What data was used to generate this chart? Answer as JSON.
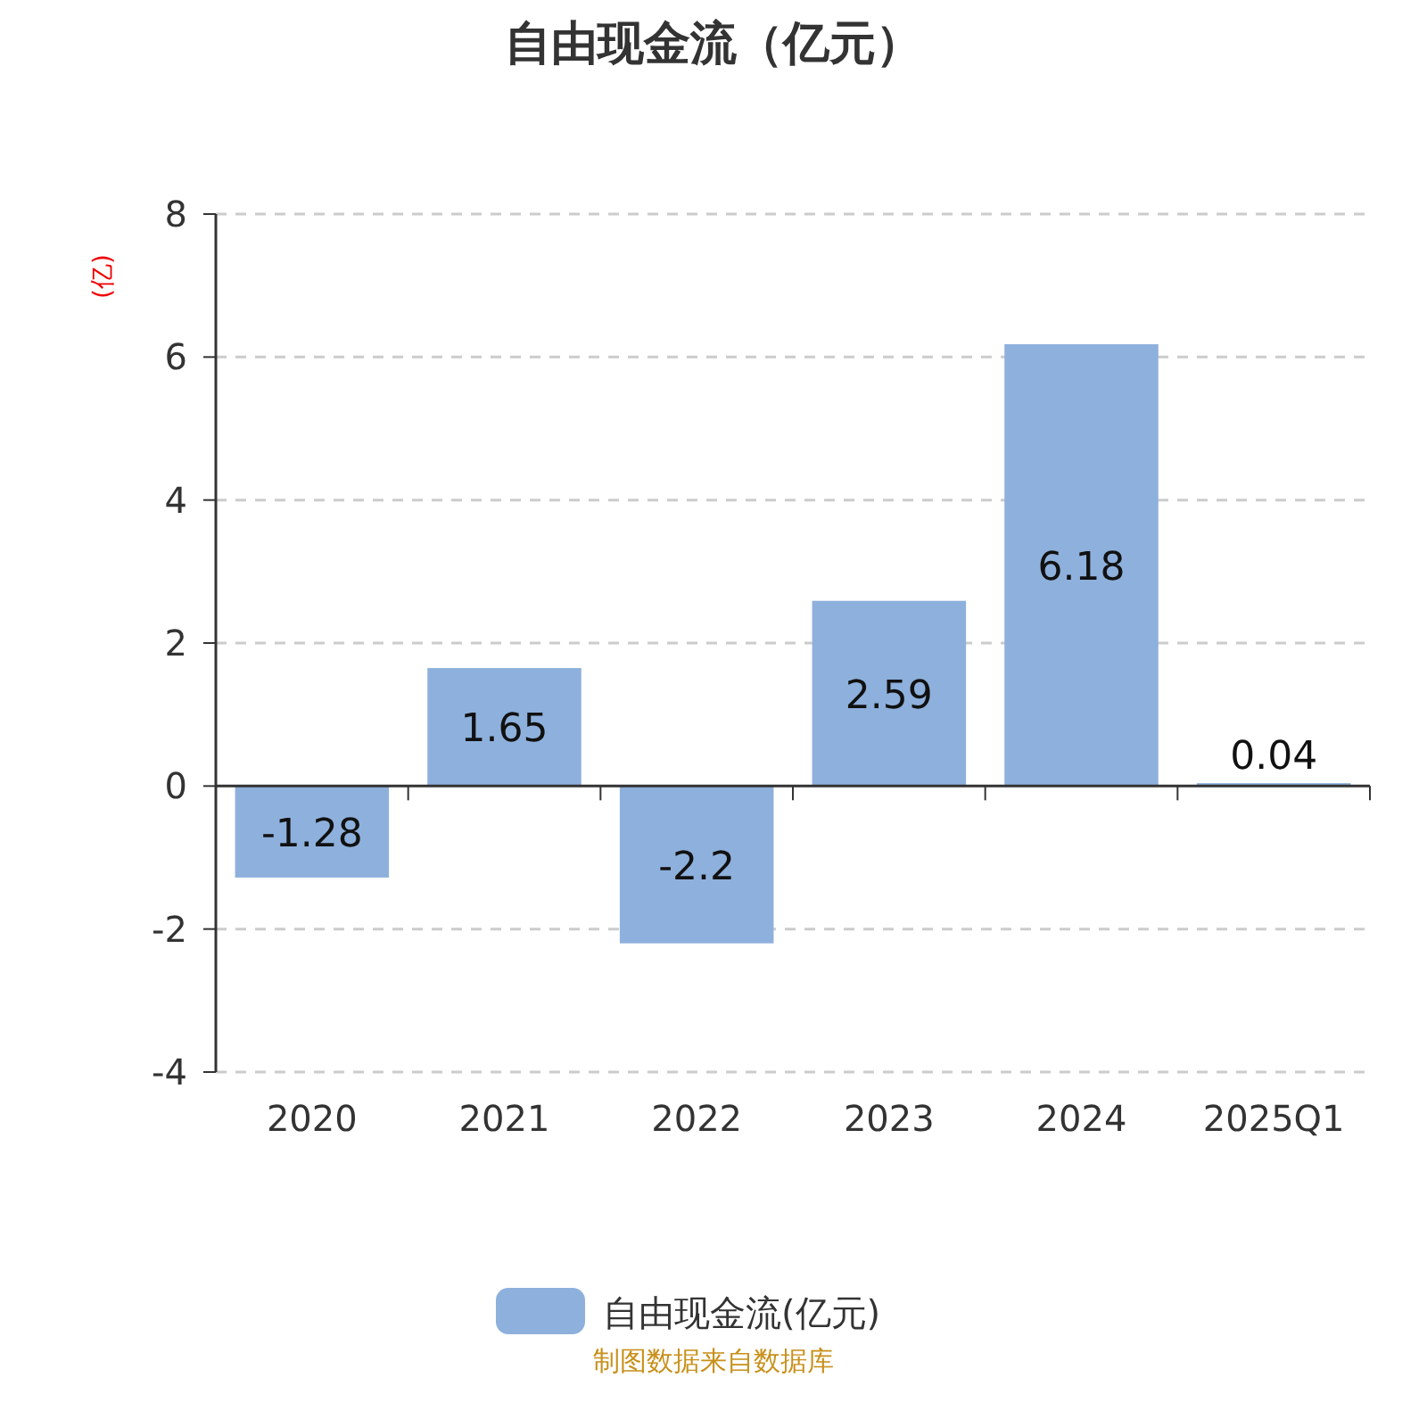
{
  "chart_data": {
    "type": "bar",
    "title": "自由现金流（亿元）",
    "ylabel": "(亿)",
    "categories": [
      "2020",
      "2021",
      "2022",
      "2023",
      "2024",
      "2025Q1"
    ],
    "series": [
      {
        "name": "自由现金流(亿元)",
        "color": "#8eb0dc",
        "values": [
          -1.28,
          1.65,
          -2.2,
          2.59,
          6.18,
          0.04
        ]
      }
    ],
    "ylim": [
      -4,
      8
    ],
    "yticks": [
      -4,
      -2,
      0,
      2,
      4,
      6,
      8
    ],
    "grid": "y",
    "data_labels": true,
    "legend": "bottom",
    "annotations": [
      "制图数据来自数据库"
    ]
  }
}
